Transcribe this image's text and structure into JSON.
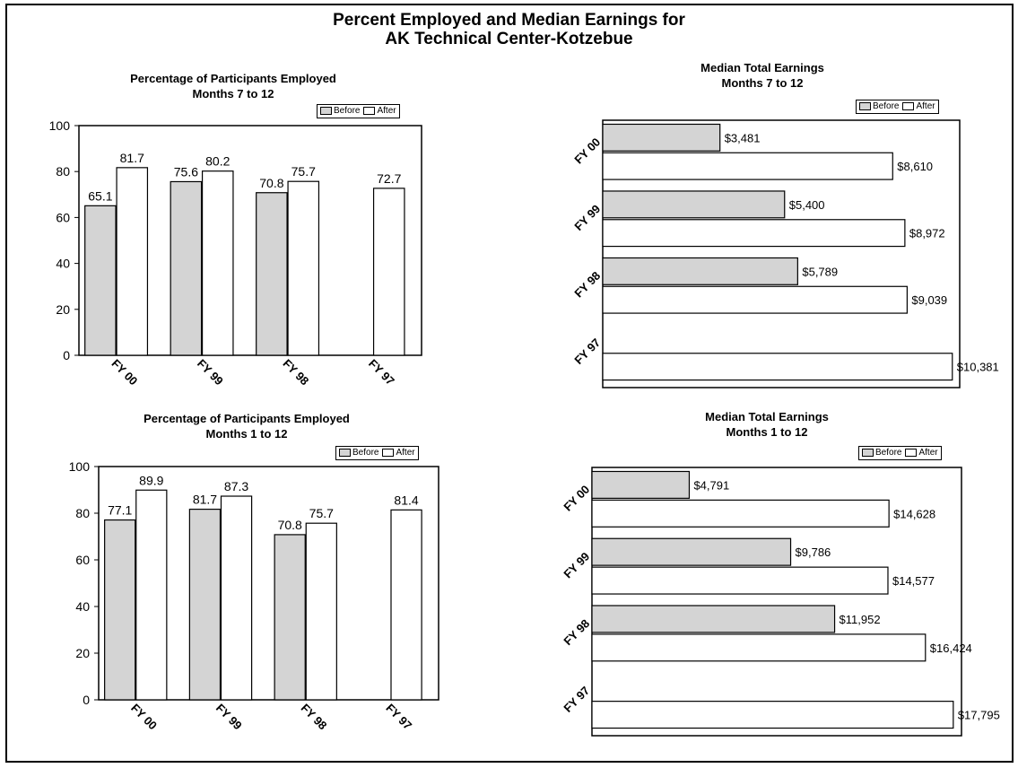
{
  "title_line1": "Percent Employed and Median Earnings for",
  "title_line2": "AK Technical Center-Kotzebue",
  "chart_data": [
    {
      "type": "bar",
      "title": "Percentage of Participants Employed",
      "subtitle": "Months 7 to 12",
      "categories": [
        "FY 00",
        "FY 99",
        "FY 98",
        "FY 97"
      ],
      "series": [
        {
          "name": "Before",
          "values": [
            65.1,
            75.6,
            70.8,
            null
          ]
        },
        {
          "name": "After",
          "values": [
            81.7,
            80.2,
            75.7,
            72.7
          ]
        }
      ],
      "ylim": [
        0,
        100
      ],
      "yticks": [
        "0",
        "20",
        "40",
        "60",
        "80",
        "100"
      ],
      "labels": {
        "Before": [
          "65.1",
          "75.6",
          "70.8",
          ""
        ],
        "After": [
          "81.7",
          "80.2",
          "75.7",
          "72.7"
        ]
      }
    },
    {
      "type": "bar",
      "orientation": "horizontal",
      "title": "Median Total Earnings",
      "subtitle": "Months 7 to 12",
      "categories": [
        "FY 00",
        "FY 99",
        "FY 98",
        "FY 97"
      ],
      "series": [
        {
          "name": "Before",
          "values": [
            3481,
            5400,
            5789,
            null
          ]
        },
        {
          "name": "After",
          "values": [
            8610,
            8972,
            9039,
            10381
          ]
        }
      ],
      "labels": {
        "Before": [
          "$3,481",
          "$5,400",
          "$5,789",
          ""
        ],
        "After": [
          "$8,610",
          "$8,972",
          "$9,039",
          "$10,381"
        ]
      }
    },
    {
      "type": "bar",
      "title": "Percentage of Participants  Employed",
      "subtitle": "Months 1 to 12",
      "categories": [
        "FY 00",
        "FY 99",
        "FY 98",
        "FY 97"
      ],
      "series": [
        {
          "name": "Before",
          "values": [
            77.1,
            81.7,
            70.8,
            null
          ]
        },
        {
          "name": "After",
          "values": [
            89.9,
            87.3,
            75.7,
            81.4
          ]
        }
      ],
      "ylim": [
        0,
        100
      ],
      "yticks": [
        "0",
        "20",
        "40",
        "60",
        "80",
        "100"
      ],
      "labels": {
        "Before": [
          "77.1",
          "81.7",
          "70.8",
          ""
        ],
        "After": [
          "89.9",
          "87.3",
          "75.7",
          "81.4"
        ]
      }
    },
    {
      "type": "bar",
      "orientation": "horizontal",
      "title": "Median Total Earnings",
      "subtitle": "Months 1 to 12",
      "categories": [
        "FY 00",
        "FY 99",
        "FY 98",
        "FY 97"
      ],
      "series": [
        {
          "name": "Before",
          "values": [
            4791,
            9786,
            11952,
            null
          ]
        },
        {
          "name": "After",
          "values": [
            14628,
            14577,
            16424,
            17795
          ]
        }
      ],
      "labels": {
        "Before": [
          "$4,791",
          "$9,786",
          "$11,952",
          ""
        ],
        "After": [
          "$14,628",
          "$14,577",
          "$16,424",
          "$17,795"
        ]
      }
    }
  ],
  "legend": {
    "before": "Before",
    "after": "After"
  },
  "colors": {
    "before_fill": "#d4d4d4",
    "after_fill": "#ffffff",
    "stroke": "#000000"
  }
}
